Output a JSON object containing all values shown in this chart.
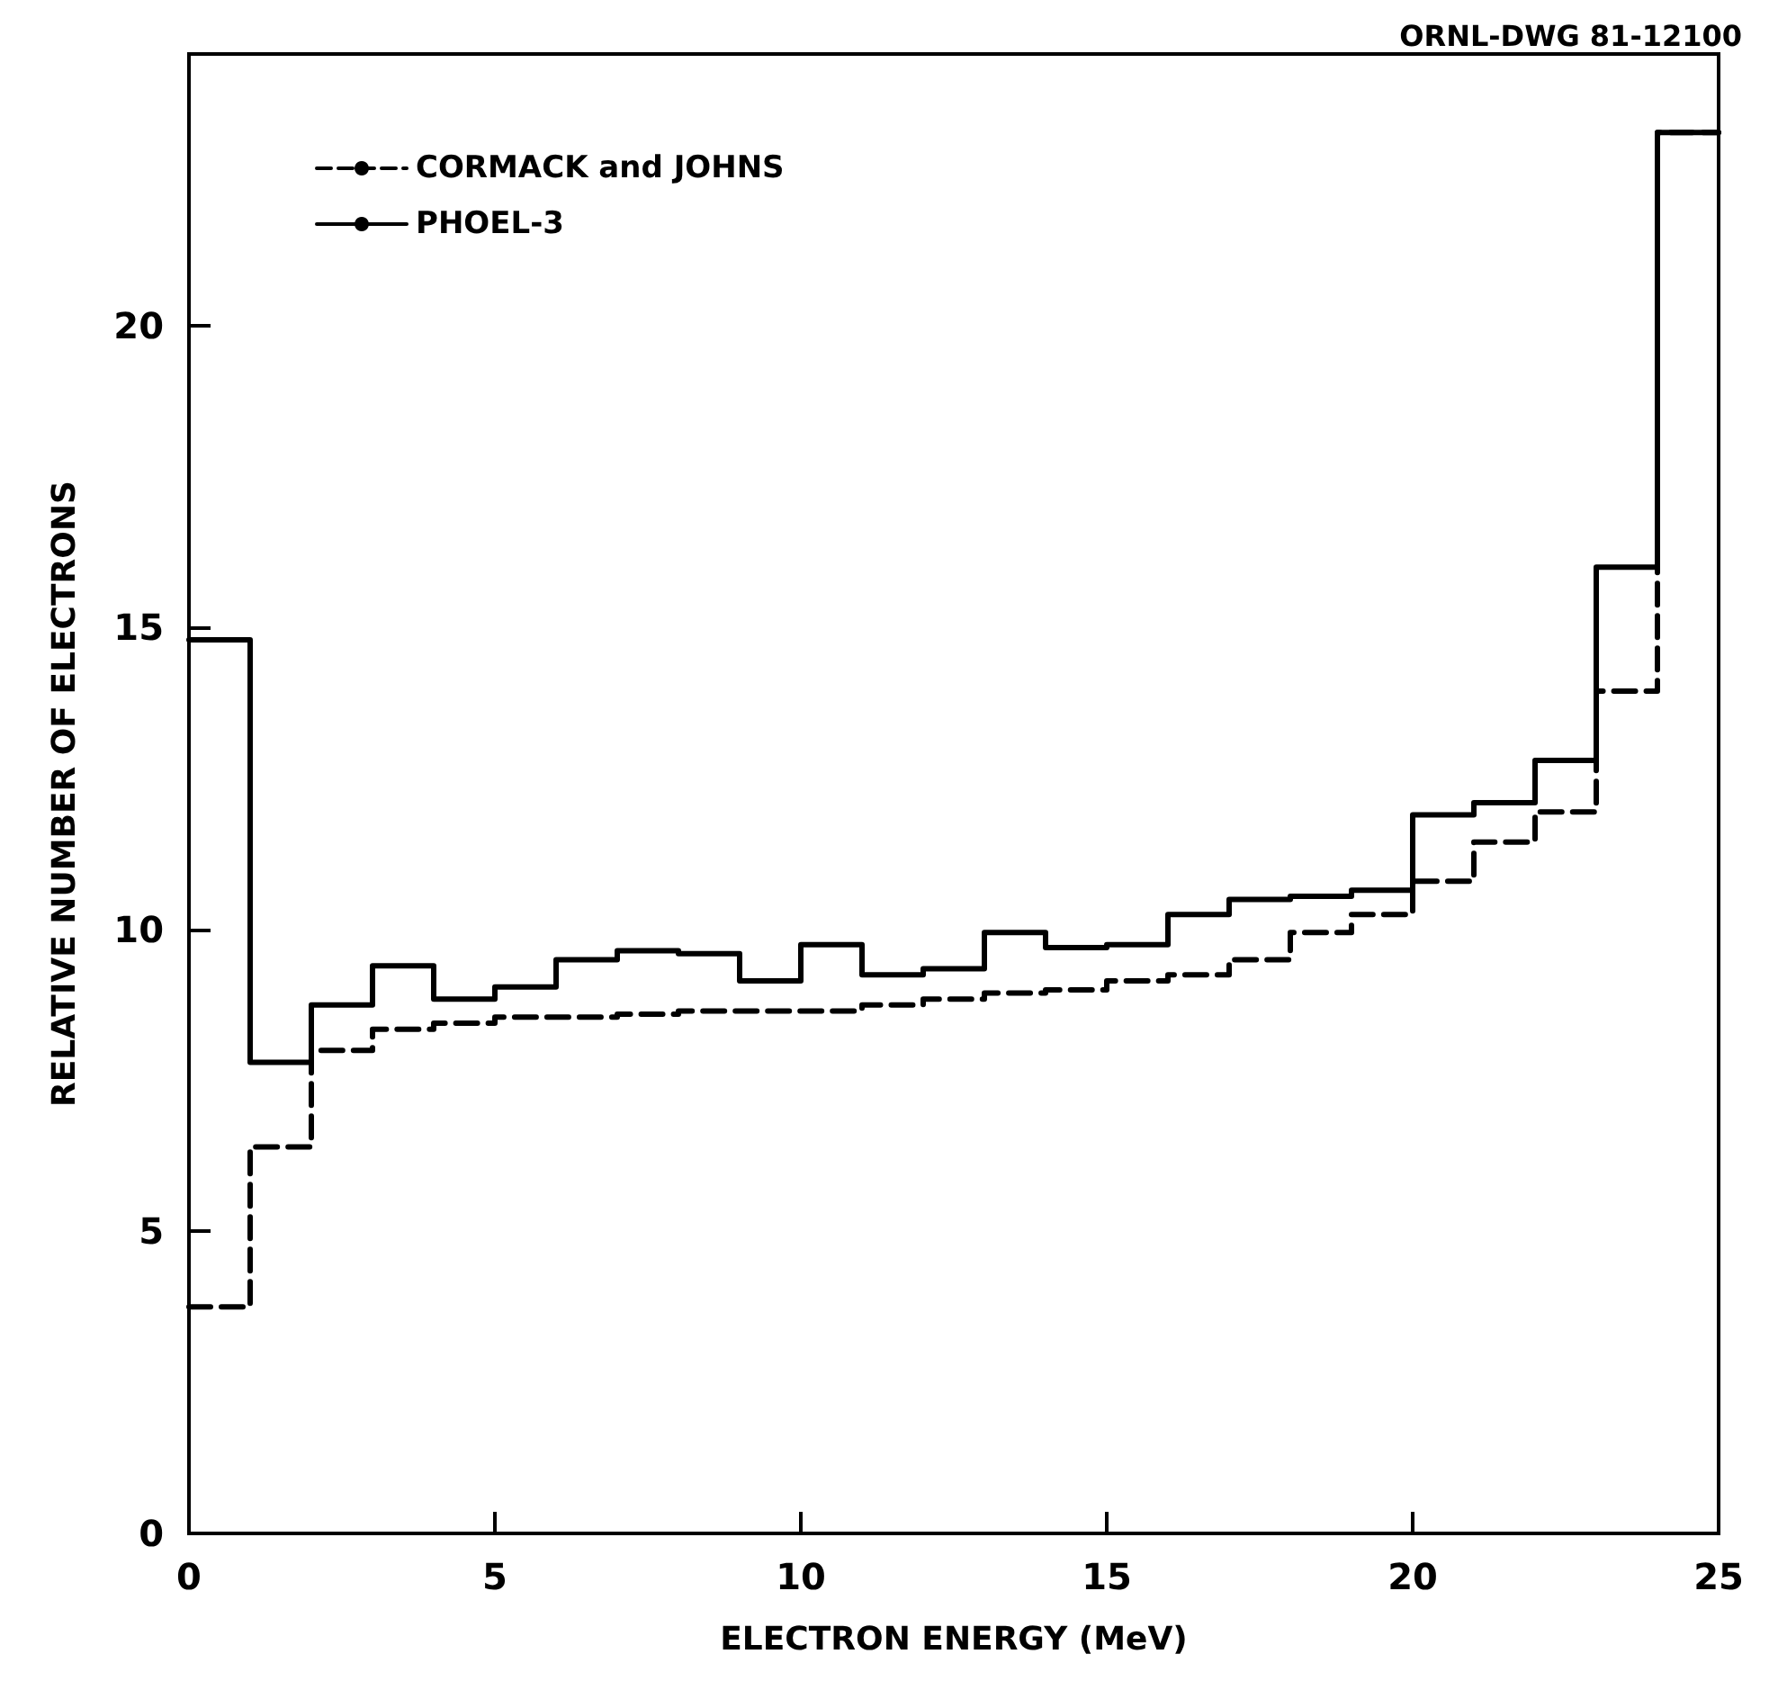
{
  "chart_data": {
    "type": "histogram",
    "xlabel": "ELECTRON ENERGY (MeV)",
    "ylabel": "RELATIVE NUMBER OF ELECTRONS",
    "annotations": [
      "ORNL-DWG 81-12100"
    ],
    "bins": [
      0,
      1,
      2,
      3,
      4,
      5,
      6,
      7,
      8,
      9,
      10,
      11,
      12,
      13,
      14,
      15,
      16,
      17,
      18,
      19,
      20,
      21,
      22,
      23,
      24,
      25
    ],
    "series": [
      {
        "name": "CORMACK and JOHNS",
        "color": "#000000",
        "line_style": "dashed",
        "values": [
          3.75,
          6.4,
          8.0,
          8.35,
          8.45,
          8.55,
          8.55,
          8.6,
          8.65,
          8.65,
          8.65,
          8.75,
          8.85,
          8.95,
          9.0,
          9.15,
          9.25,
          9.5,
          9.95,
          10.25,
          10.8,
          11.45,
          11.95,
          13.95,
          23.2
        ]
      },
      {
        "name": "PHOEL-3",
        "color": "#000000",
        "line_style": "solid",
        "values": [
          14.8,
          7.8,
          8.75,
          9.4,
          8.85,
          9.05,
          9.5,
          9.65,
          9.6,
          9.15,
          9.75,
          9.25,
          9.35,
          9.95,
          9.7,
          9.75,
          10.25,
          10.5,
          10.55,
          10.65,
          11.9,
          12.1,
          12.8,
          16.0,
          23.2
        ]
      }
    ],
    "xlim": [
      0,
      25
    ],
    "xticks": [
      0,
      5,
      10,
      15,
      20,
      25
    ],
    "ylim": [
      0,
      24.5
    ],
    "yticks": [
      0,
      5,
      10,
      15,
      20
    ],
    "grid": false,
    "legend": "top left",
    "marker": "none"
  }
}
